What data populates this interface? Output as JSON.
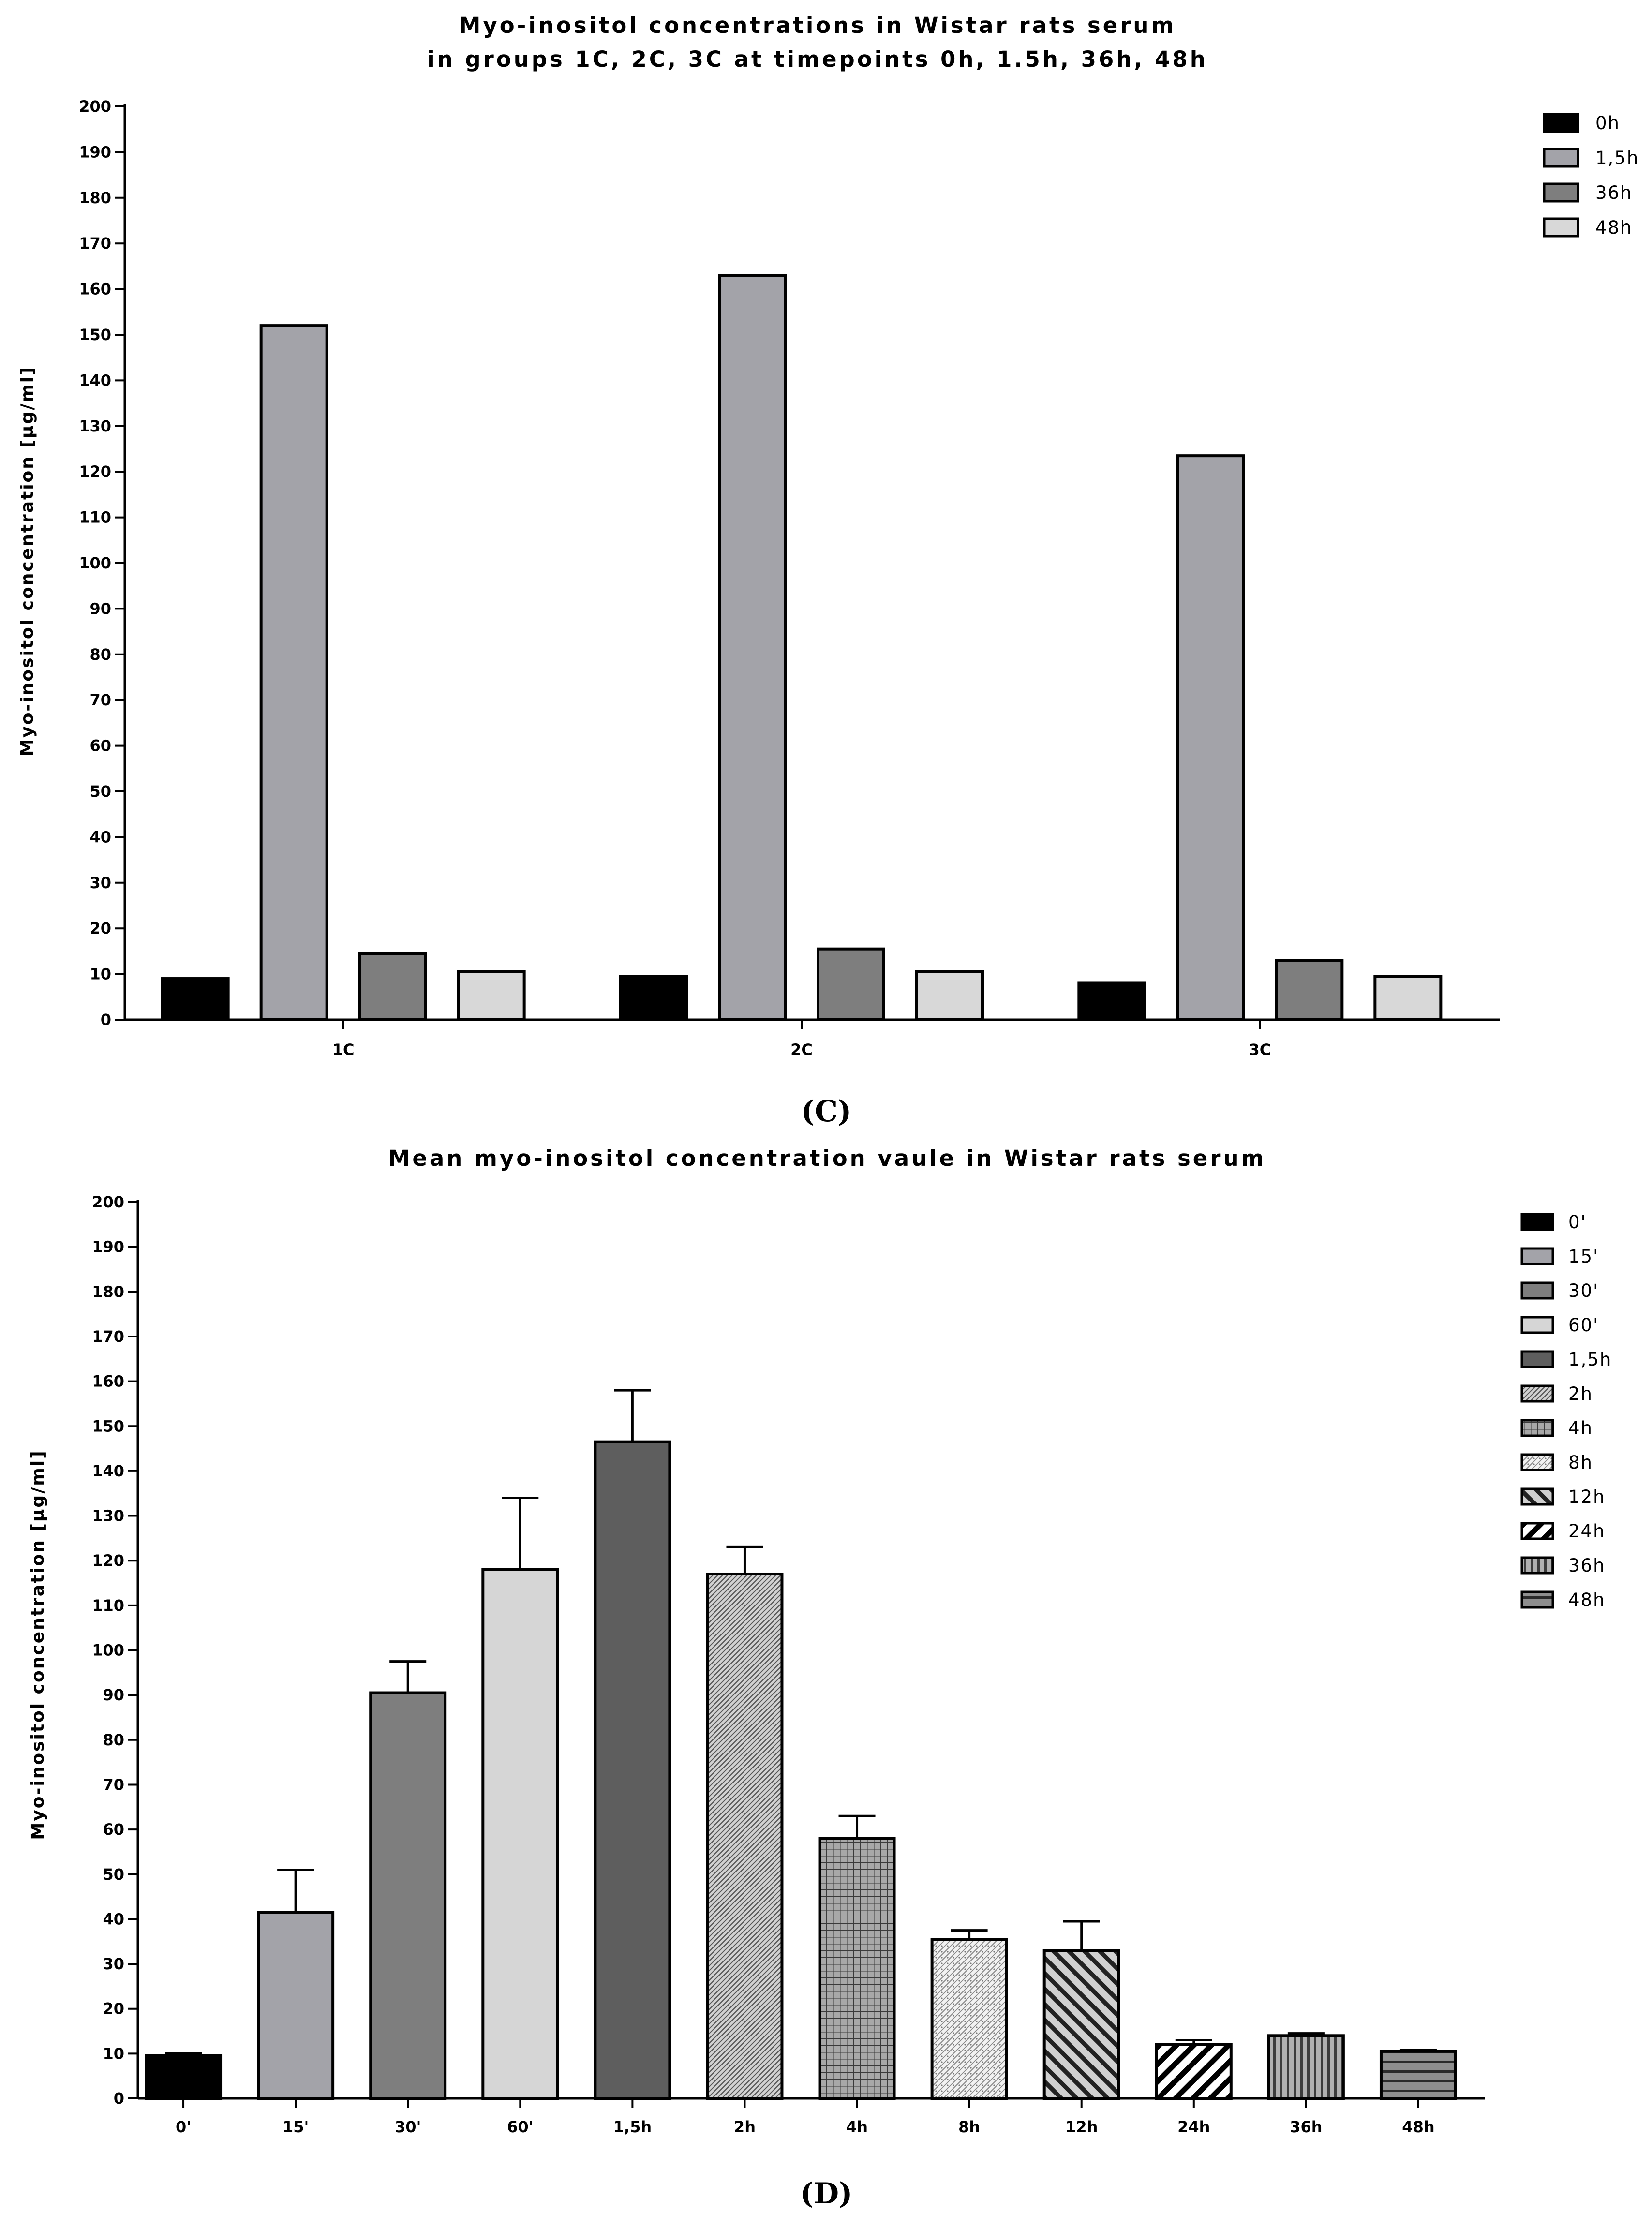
{
  "panel_c": {
    "label": "(C)",
    "title_line1": "Myo-inositol concentrations in Wistar rats serum",
    "title_line2": "in groups 1C, 2C, 3C at timepoints 0h, 1.5h, 36h, 48h"
  },
  "panel_d": {
    "label": "(D)",
    "title": "Mean myo-inositol concentration vaule in Wistar rats serum"
  },
  "chart_data": [
    {
      "type": "bar",
      "title": "Myo-inositol concentrations in Wistar rats serum in groups 1C, 2C, 3C at timepoints 0h, 1.5h, 36h, 48h",
      "xlabel": "",
      "ylabel": "Myo-inositol concentration [µg/ml]",
      "ylim": [
        0,
        200
      ],
      "yticks": [
        0,
        10,
        20,
        30,
        40,
        50,
        60,
        70,
        80,
        90,
        100,
        110,
        120,
        130,
        140,
        150,
        160,
        170,
        180,
        190,
        200
      ],
      "categories": [
        "1C",
        "2C",
        "3C"
      ],
      "series": [
        {
          "name": "0h",
          "color": "#000000",
          "values": [
            9,
            9.5,
            8
          ]
        },
        {
          "name": "1,5h",
          "color": "#a3a3a9",
          "values": [
            152,
            163,
            123.5
          ]
        },
        {
          "name": "36h",
          "color": "#7e7e7e",
          "values": [
            14.5,
            15.5,
            13
          ]
        },
        {
          "name": "48h",
          "color": "#d8d8d8",
          "values": [
            10.5,
            10.5,
            9.5
          ]
        }
      ],
      "legend_position": "top-right",
      "grid": false
    },
    {
      "type": "bar",
      "title": "Mean myo-inositol concentration vaule in Wistar rats serum",
      "xlabel": "",
      "ylabel": "Myo-inositol concentration [µg/ml]",
      "ylim": [
        0,
        200
      ],
      "yticks": [
        0,
        10,
        20,
        30,
        40,
        50,
        60,
        70,
        80,
        90,
        100,
        110,
        120,
        130,
        140,
        150,
        160,
        170,
        180,
        190,
        200
      ],
      "categories": [
        "0'",
        "15'",
        "30'",
        "60'",
        "1,5h",
        "2h",
        "4h",
        "8h",
        "12h",
        "24h",
        "36h",
        "48h"
      ],
      "values": [
        9.5,
        41.5,
        90.5,
        118,
        146.5,
        117,
        58,
        35.5,
        33,
        12,
        14,
        10.5
      ],
      "error": [
        0.5,
        9.5,
        7,
        16,
        11.5,
        6,
        5,
        2,
        6.5,
        1,
        0.5,
        0.3
      ],
      "series_styles": [
        {
          "name": "0'",
          "fill": "#000000",
          "pattern": "solid"
        },
        {
          "name": "15'",
          "fill": "#a3a3a9",
          "pattern": "solid"
        },
        {
          "name": "30'",
          "fill": "#7e7e7e",
          "pattern": "solid"
        },
        {
          "name": "60'",
          "fill": "#d6d6d6",
          "pattern": "solid"
        },
        {
          "name": "1,5h",
          "fill": "#5e5e5e",
          "pattern": "solid"
        },
        {
          "name": "2h",
          "fill": "#c4c4c4",
          "pattern": "fine-diagonal"
        },
        {
          "name": "4h",
          "fill": "#9a9a9a",
          "pattern": "grid"
        },
        {
          "name": "8h",
          "fill": "#eeeeee",
          "pattern": "dots"
        },
        {
          "name": "12h",
          "fill": "#c0c0c0",
          "pattern": "wide-diagonal"
        },
        {
          "name": "24h",
          "fill": "#ffffff",
          "pattern": "thick-diagonal"
        },
        {
          "name": "36h",
          "fill": "#9d9d9d",
          "pattern": "vertical"
        },
        {
          "name": "48h",
          "fill": "#8a8a8a",
          "pattern": "horizontal"
        }
      ],
      "legend_position": "top-right",
      "grid": false
    }
  ]
}
